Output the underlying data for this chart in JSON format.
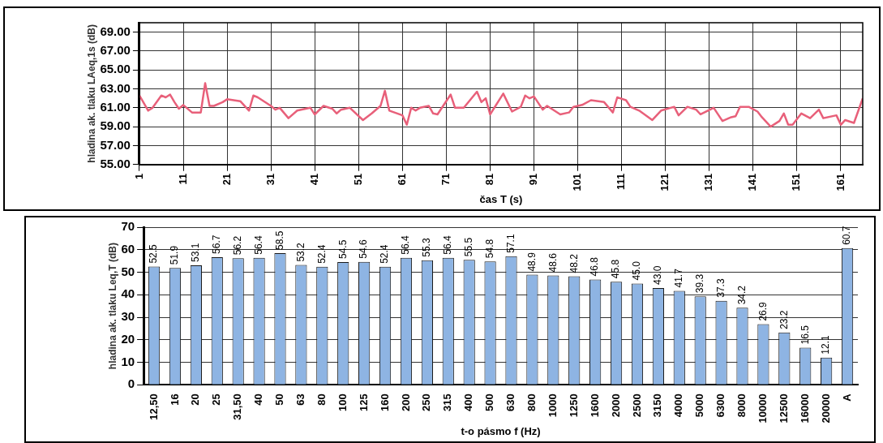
{
  "chart_data": [
    {
      "type": "line",
      "xlabel": "čas T (s)",
      "ylabel": "hladina ak. tlaku LAeq,1s (dB)",
      "grid": true,
      "legend": false,
      "marker": "none",
      "line_style": "solid",
      "xlim": [
        1,
        166
      ],
      "xticks": [
        1,
        11,
        21,
        31,
        41,
        51,
        61,
        71,
        81,
        91,
        101,
        111,
        121,
        131,
        141,
        151,
        161
      ],
      "ylim": [
        55,
        70
      ],
      "yticks": [
        {
          "value": 55,
          "label": "55.00"
        },
        {
          "value": 57,
          "label": "57.00"
        },
        {
          "value": 59,
          "label": "59.00"
        },
        {
          "value": 61,
          "label": "61.00"
        },
        {
          "value": 63,
          "label": "63.00"
        },
        {
          "value": 65,
          "label": "65.00"
        },
        {
          "value": 67,
          "label": "67.00"
        },
        {
          "value": 69,
          "label": "69.00"
        }
      ],
      "series": [
        {
          "color": "#e8607a",
          "x": [
            1,
            3,
            4,
            6,
            7,
            8,
            9,
            10,
            11,
            13,
            15,
            16,
            17,
            18,
            20,
            21,
            24,
            26,
            27,
            28,
            31,
            32,
            33,
            35,
            37,
            40,
            41,
            43,
            45,
            46,
            47,
            49,
            52,
            54,
            56,
            57,
            58,
            61,
            62,
            63,
            64,
            65,
            67,
            68,
            69,
            72,
            73,
            75,
            78,
            79,
            80,
            81,
            84,
            86,
            88,
            89,
            90,
            91,
            93,
            94,
            97,
            99,
            100,
            102,
            104,
            107,
            109,
            110,
            112,
            113,
            115,
            118,
            120,
            123,
            124,
            126,
            128,
            129,
            132,
            134,
            136,
            137,
            138,
            140,
            142,
            143,
            145,
            147,
            148,
            149,
            150,
            152,
            154,
            156,
            157,
            160,
            161,
            162,
            164,
            166
          ],
          "values": [
            62.3,
            60.7,
            61.0,
            62.3,
            62.1,
            62.4,
            61.6,
            60.9,
            61.3,
            60.5,
            60.5,
            63.6,
            61.2,
            61.2,
            61.6,
            61.9,
            61.7,
            60.7,
            62.3,
            62.1,
            61.2,
            60.8,
            61.0,
            59.9,
            60.7,
            61.0,
            60.3,
            61.2,
            60.9,
            60.4,
            60.8,
            61.0,
            59.7,
            60.4,
            61.2,
            62.8,
            60.7,
            60.2,
            59.2,
            61.0,
            60.7,
            61.0,
            61.2,
            60.4,
            60.3,
            62.4,
            61.0,
            61.0,
            62.7,
            61.6,
            62.0,
            60.3,
            62.5,
            60.6,
            61.1,
            62.3,
            62.0,
            62.2,
            60.8,
            61.2,
            60.3,
            60.5,
            61.1,
            61.3,
            61.8,
            61.6,
            60.5,
            62.1,
            61.8,
            61.1,
            60.7,
            59.7,
            60.7,
            61.1,
            60.2,
            61.1,
            60.8,
            60.3,
            61.0,
            59.6,
            60.0,
            60.1,
            61.1,
            61.1,
            60.6,
            60.0,
            59.0,
            59.6,
            60.4,
            59.2,
            59.2,
            60.4,
            59.9,
            60.8,
            59.9,
            60.2,
            59.2,
            59.7,
            59.4,
            62.0
          ]
        }
      ]
    },
    {
      "type": "bar",
      "xlabel": "t-o pásmo f (Hz)",
      "ylabel": "hladina ak. tlaku Leq,T (dB)",
      "grid": "y",
      "legend": false,
      "categories": [
        "12,50",
        "16",
        "20",
        "25",
        "31,50",
        "40",
        "50",
        "63",
        "80",
        "100",
        "125",
        "160",
        "200",
        "250",
        "315",
        "400",
        "500",
        "630",
        "800",
        "1000",
        "1250",
        "1600",
        "2000",
        "2500",
        "3150",
        "4000",
        "5000",
        "6300",
        "8000",
        "10000",
        "12500",
        "16000",
        "20000",
        "A"
      ],
      "ylim": [
        0,
        70
      ],
      "yticks": [
        0,
        10,
        20,
        30,
        40,
        50,
        60,
        70
      ],
      "series": [
        {
          "color": "#8eb4e3",
          "values": [
            52.5,
            51.9,
            53.1,
            56.7,
            56.2,
            56.4,
            58.5,
            53.2,
            52.4,
            54.5,
            54.6,
            52.4,
            56.4,
            55.3,
            56.4,
            55.5,
            54.8,
            57.1,
            48.9,
            48.6,
            48.2,
            46.8,
            45.8,
            45.0,
            43.0,
            41.7,
            39.3,
            37.3,
            34.2,
            26.9,
            23.2,
            16.5,
            12.1,
            60.7
          ],
          "value_labels": [
            "52.5",
            "51.9",
            "53.1",
            "56.7",
            "56.2",
            "56.4",
            "58.5",
            "53.2",
            "52.4",
            "54.5",
            "54.6",
            "52.4",
            "56.4",
            "55.3",
            "56.4",
            "55.5",
            "54.8",
            "57.1",
            "48.9",
            "48.6",
            "48.2",
            "46.8",
            "45.8",
            "45.0",
            "43.0",
            "41.7",
            "39.3",
            "37.3",
            "34.2",
            "26.9",
            "23.2",
            "16.5",
            "12.1",
            "60.7"
          ]
        }
      ]
    }
  ]
}
